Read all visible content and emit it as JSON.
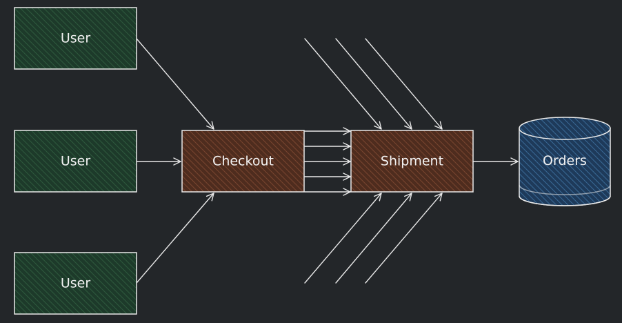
{
  "diagram": {
    "nodes": {
      "users": [
        {
          "label": "User"
        },
        {
          "label": "User"
        },
        {
          "label": "User"
        }
      ],
      "checkout": {
        "label": "Checkout"
      },
      "shipment": {
        "label": "Shipment"
      },
      "orders": {
        "label": "Orders",
        "shape": "database-cylinder"
      }
    },
    "colors": {
      "background": "#232629",
      "user_fill": "#1d3a2a",
      "process_fill": "#4e2c1e",
      "database_fill": "#1e3a5a",
      "stroke": "#e9e9e9"
    },
    "edges": [
      {
        "from": "User",
        "to": "Checkout"
      },
      {
        "from": "User",
        "to": "Checkout"
      },
      {
        "from": "User",
        "to": "Checkout"
      },
      {
        "from": "Checkout",
        "to": "Shipment",
        "count": 5
      },
      {
        "from": "",
        "to": "Shipment",
        "count": 6
      },
      {
        "from": "Shipment",
        "to": "Orders"
      }
    ]
  }
}
